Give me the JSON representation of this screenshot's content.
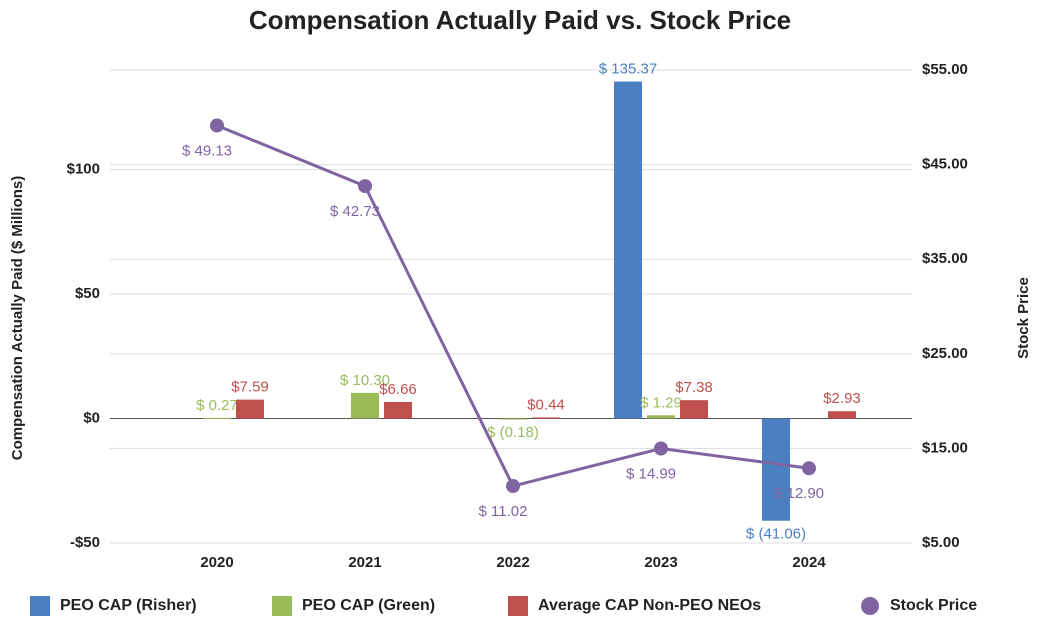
{
  "chart_data": {
    "type": "bar_line",
    "title": "Compensation Actually Paid vs. Stock Price",
    "y_label": "Compensation Actually Paid ($ Millions)",
    "y2_label": "Stock Price",
    "categories": [
      "2020",
      "2021",
      "2022",
      "2023",
      "2024"
    ],
    "series": [
      {
        "name": "PEO CAP (Risher)",
        "color": "#4a7fc1",
        "type": "bar",
        "values": [
          null,
          null,
          null,
          135.37,
          -41.06
        ],
        "value_labels": [
          null,
          null,
          null,
          "$ 135.37",
          "$ (41.06)"
        ]
      },
      {
        "name": "PEO CAP (Green)",
        "color": "#9bbb59",
        "type": "bar",
        "values": [
          0.27,
          10.3,
          -0.18,
          1.29,
          null
        ],
        "value_labels": [
          "$ 0.27",
          "$ 10.30",
          "$ (0.18)",
          "$ 1.29",
          null
        ]
      },
      {
        "name": "Average CAP Non-PEO NEOs",
        "color": "#c0504d",
        "type": "bar",
        "values": [
          7.59,
          6.66,
          0.44,
          7.38,
          2.93
        ],
        "value_labels": [
          "$7.59",
          "$6.66",
          "$0.44",
          "$7.38",
          "$2.93"
        ]
      },
      {
        "name": "Stock Price",
        "color": "#8064a2",
        "type": "line",
        "axis": "y2",
        "values": [
          49.13,
          42.73,
          11.02,
          14.99,
          12.9
        ],
        "value_labels": [
          "$ 49.13",
          "$ 42.73",
          "$ 11.02",
          "$ 14.99",
          "$ 12.90"
        ]
      }
    ],
    "ylim": [
      -50,
      140
    ],
    "yticks": [
      {
        "value": -50,
        "label": "-$50"
      },
      {
        "value": 0,
        "label": "$0"
      },
      {
        "value": 50,
        "label": "$50"
      },
      {
        "value": 100,
        "label": "$100"
      }
    ],
    "y2lim": [
      5,
      55
    ],
    "y2ticks": [
      {
        "value": 5,
        "label": "$5.00"
      },
      {
        "value": 15,
        "label": "$15.00"
      },
      {
        "value": 25,
        "label": "$25.00"
      },
      {
        "value": 35,
        "label": "$35.00"
      },
      {
        "value": 45,
        "label": "$45.00"
      },
      {
        "value": 55,
        "label": "$55.00"
      }
    ],
    "grid": true,
    "legend": "bottom"
  }
}
